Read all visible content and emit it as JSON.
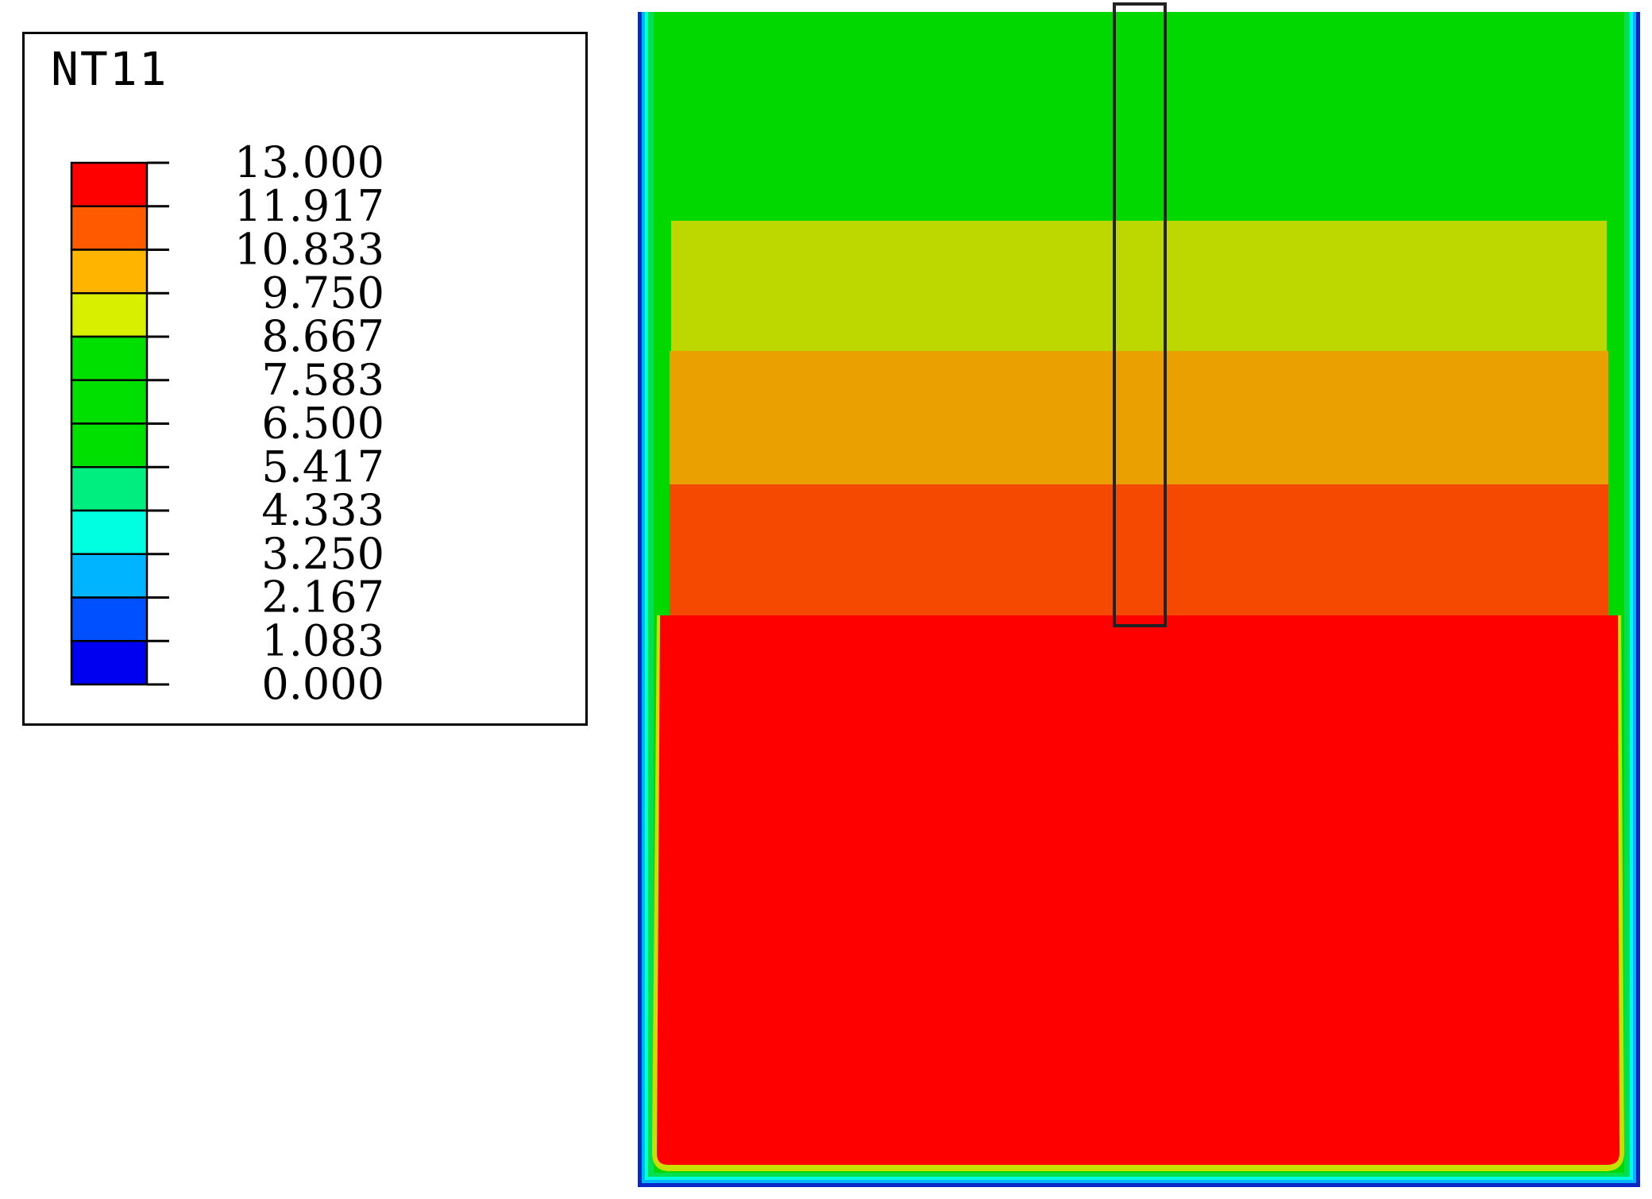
{
  "legend": {
    "title": "NT11",
    "ticks": [
      "13.000",
      "11.917",
      "10.833",
      "9.750",
      "8.667",
      "7.583",
      "6.500",
      "5.417",
      "4.333",
      "3.250",
      "2.167",
      "1.083",
      "0.000"
    ],
    "bands": [
      {
        "color": "#ff0000"
      },
      {
        "color": "#ff5a00"
      },
      {
        "color": "#ffb400"
      },
      {
        "color": "#d8f000"
      },
      {
        "color": "#00e000"
      },
      {
        "color": "#00e000"
      },
      {
        "color": "#00e000"
      },
      {
        "color": "#00ee80"
      },
      {
        "color": "#00ffe0"
      },
      {
        "color": "#00b4ff"
      },
      {
        "color": "#0050ff"
      },
      {
        "color": "#0000f0"
      }
    ]
  },
  "contour": {
    "zones": [
      {
        "name": "top",
        "value_range": [
          5.417,
          8.667
        ],
        "color": "#00d800"
      },
      {
        "name": "upper-middle",
        "value_range": [
          8.667,
          9.75
        ],
        "color": "#bcd800"
      },
      {
        "name": "middle",
        "value_range": [
          9.75,
          10.833
        ],
        "color": "#eaa000"
      },
      {
        "name": "lower-middle",
        "value_range": [
          10.833,
          11.917
        ],
        "color": "#f54800"
      },
      {
        "name": "bottom",
        "value_range": [
          11.917,
          13.0
        ],
        "color": "#ff0000"
      }
    ],
    "boundary_colors": [
      "#0a28c8",
      "#00b4ff",
      "#00ffe0",
      "#00e050",
      "#c8e000"
    ]
  }
}
